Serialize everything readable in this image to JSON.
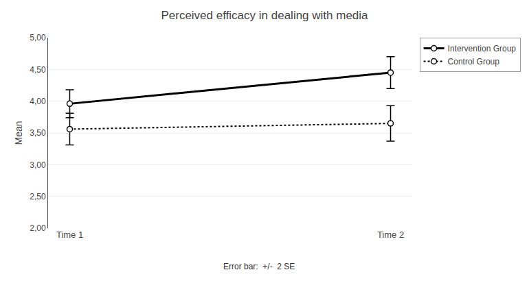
{
  "chart_data": {
    "type": "line",
    "title": "Perceived efficacy in dealing with media",
    "ylabel": "Mean",
    "categories": [
      "Time 1",
      "Time 2"
    ],
    "series": [
      {
        "name": "Intervention Group",
        "color": "#000000",
        "values": [
          3.96,
          4.45
        ],
        "errors": [
          0.22,
          0.25
        ],
        "line_style": "solid",
        "marker": "circle"
      },
      {
        "name": "Control Group",
        "color": "#000000",
        "values": [
          3.56,
          3.65
        ],
        "errors": [
          0.25,
          0.28
        ],
        "line_style": "dotted",
        "marker": "circle"
      }
    ],
    "ylim": [
      2.0,
      5.0
    ],
    "yticks": [
      {
        "value": 2.0,
        "label": "2,00"
      },
      {
        "value": 2.5,
        "label": "2,50"
      },
      {
        "value": 3.0,
        "label": "3,00"
      },
      {
        "value": 3.5,
        "label": "3,50"
      },
      {
        "value": 4.0,
        "label": "4,00"
      },
      {
        "value": 4.5,
        "label": "4,50"
      },
      {
        "value": 5.0,
        "label": "5,00"
      }
    ],
    "grid": "y",
    "legend": "upper right",
    "annotations": [
      "Error bar:  +/-  2 SE"
    ]
  }
}
